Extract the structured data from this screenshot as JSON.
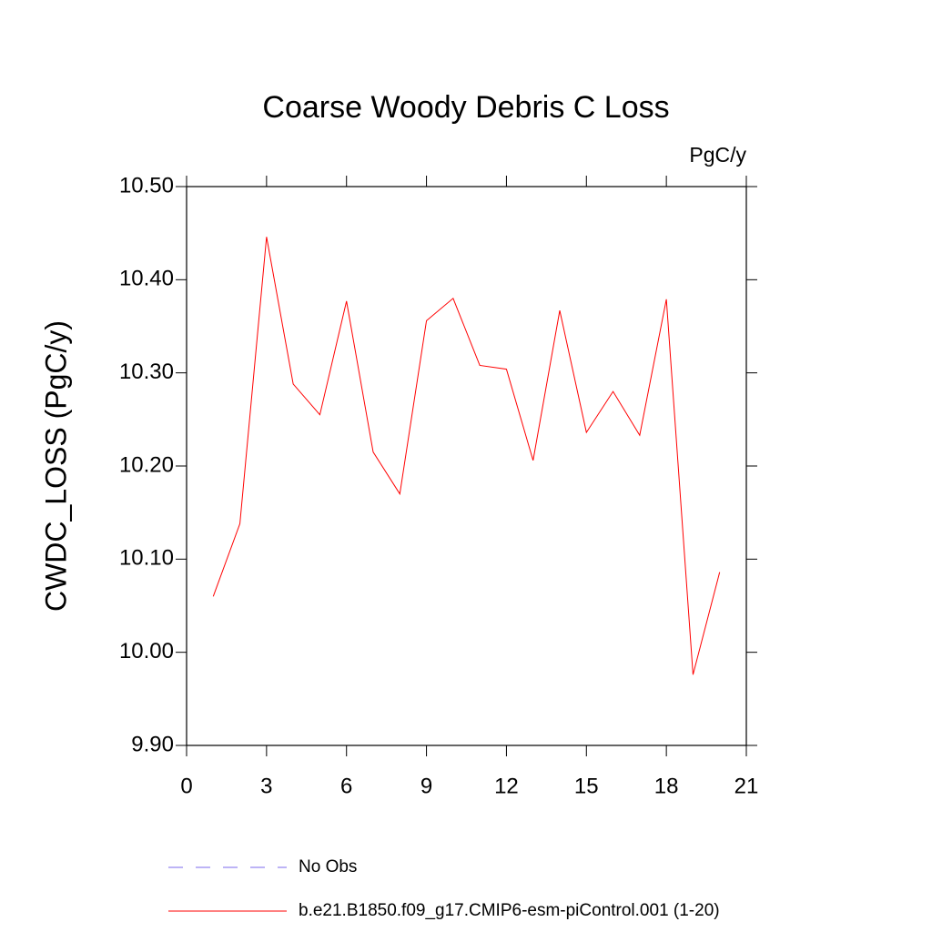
{
  "chart_data": {
    "type": "line",
    "title": "Coarse Woody Debris C Loss",
    "units": "PgC/y",
    "y_label": "CWDC_LOSS  (PgC/y)",
    "x": [
      1,
      2,
      3,
      4,
      5,
      6,
      7,
      8,
      9,
      10,
      11,
      12,
      13,
      14,
      15,
      16,
      17,
      18,
      19,
      20
    ],
    "series": [
      {
        "name": "b.e21.B1850.f09_g17.CMIP6-esm-piControl.001 (1-20)",
        "color": "#ff0000",
        "values": [
          10.06,
          10.138,
          10.446,
          10.288,
          10.255,
          10.377,
          10.215,
          10.17,
          10.356,
          10.38,
          10.308,
          10.304,
          10.206,
          10.367,
          10.236,
          10.28,
          10.233,
          10.379,
          9.976,
          10.086
        ]
      }
    ],
    "reference_legend": {
      "name": "No Obs",
      "color": "#7b68ee",
      "style": "dashed"
    },
    "xlim": [
      0,
      21
    ],
    "xticks": [
      0,
      3,
      6,
      9,
      12,
      15,
      18,
      21
    ],
    "ylim": [
      9.9,
      10.5
    ],
    "yticks": [
      {
        "value": 9.9,
        "label": "9.90"
      },
      {
        "value": 10.0,
        "label": "10.00"
      },
      {
        "value": 10.1,
        "label": "10.10"
      },
      {
        "value": 10.2,
        "label": "10.20"
      },
      {
        "value": 10.3,
        "label": "10.30"
      },
      {
        "value": 10.4,
        "label": "10.40"
      },
      {
        "value": 10.5,
        "label": "10.50"
      }
    ],
    "grid": false
  }
}
